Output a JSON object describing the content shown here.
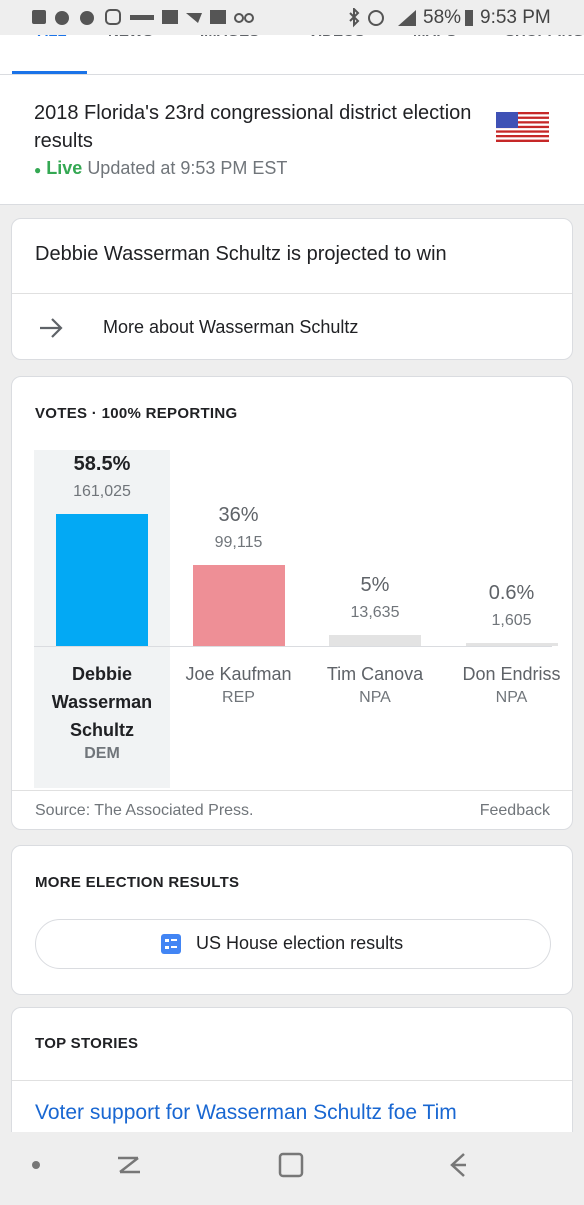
{
  "status_bar": {
    "battery": "58%",
    "time": "9:53 PM"
  },
  "tabs": [
    "ALL",
    "NEWS",
    "IMAGES",
    "VIDEOS",
    "MAPS",
    "SHOPPING"
  ],
  "header": {
    "title": "2018 Florida's 23rd congressional district election results",
    "live": "Live",
    "updated": "Updated at 9:53 PM EST"
  },
  "projection": {
    "text": "Debbie Wasserman Schultz is projected to win",
    "link": "More about Wasserman Schultz"
  },
  "votes": {
    "heading": "VOTES · 100% REPORTING",
    "source": "Source: The Associated Press.",
    "feedback": "Feedback"
  },
  "chart_data": {
    "type": "bar",
    "categories": [
      "Debbie Wasserman Schultz",
      "Joe Kaufman",
      "Tim Canova",
      "Don Endriss"
    ],
    "values": [
      58.5,
      36,
      5,
      0.6
    ],
    "value_labels": [
      "58.5%",
      "36%",
      "5%",
      "0.6%"
    ],
    "vote_counts": [
      "161,025",
      "99,115",
      "13,635",
      "1,605"
    ],
    "parties": [
      "DEM",
      "REP",
      "NPA",
      "NPA"
    ],
    "colors": [
      "#03a9f4",
      "#ee8f96",
      "#e3e3e3",
      "#e3e3e3"
    ],
    "highlight": 0
  },
  "more_results": {
    "heading": "MORE ELECTION RESULTS",
    "button": "US House election results"
  },
  "top_stories": {
    "heading": "TOP STORIES",
    "headline": "Voter support for Wasserman Schultz foe Tim"
  }
}
